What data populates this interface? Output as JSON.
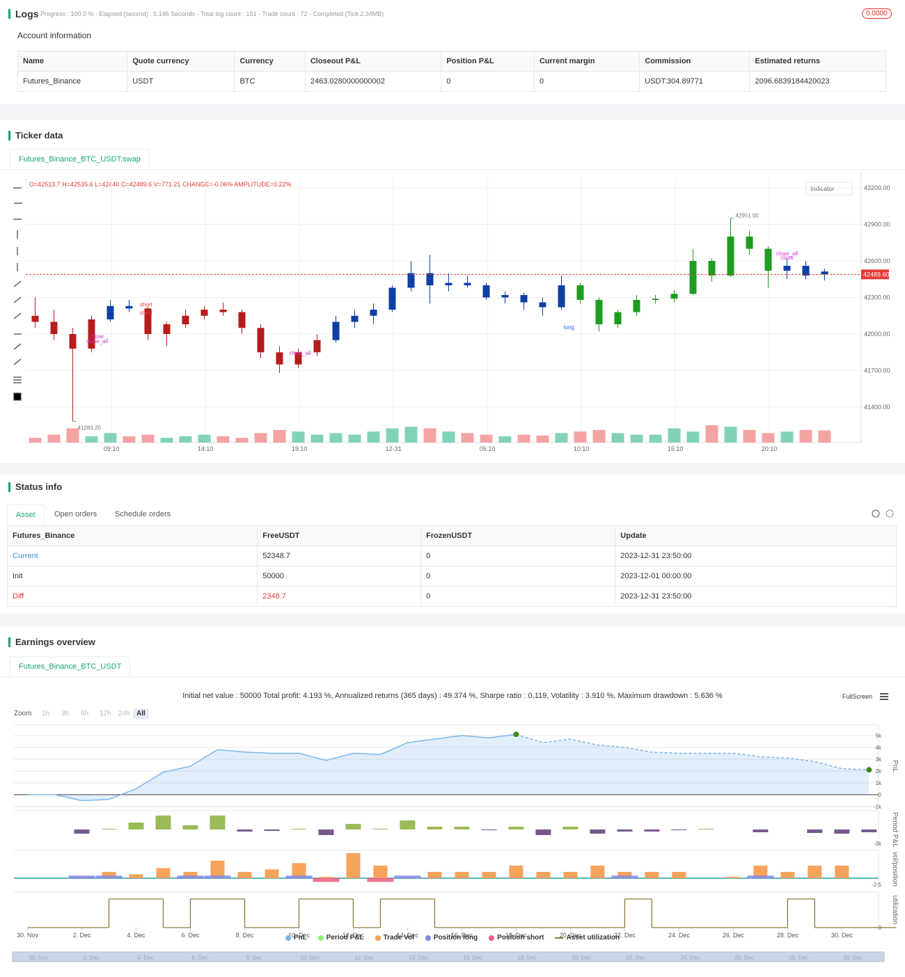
{
  "logs": {
    "title": "Logs",
    "progress": "Progress : 100.0 % - Elapsed (second) : 5.146  Seconds - Total log count : 151 - Trade count : 72 - Completed (Tick 2.34MB)",
    "badge": "0.0000",
    "account": {
      "title": "Account information",
      "columns": [
        "Name",
        "Quote currency",
        "Currency",
        "Closeout P&L",
        "Position P&L",
        "Current margin",
        "Commission",
        "Estimated returns"
      ],
      "rows": [
        [
          "Futures_Binance",
          "USDT",
          "BTC",
          "2463.0280000000002",
          "0",
          "0",
          "USDT:304.89771",
          "2096.6839184420023"
        ]
      ]
    }
  },
  "ticker": {
    "title": "Ticker data",
    "tab": "Futures_Binance_BTC_USDT:swap",
    "indicator": "Indicator",
    "chart": {
      "type": "candlestick",
      "ohlc_text": "O=42513.7 H=42535.6 L=42440 C=42489.6 V=771.21 CHANGE=-0.06% AMPLITUDE=0.22%",
      "ylim": [
        41108.6,
        43285.7
      ],
      "yticks": [
        {
          "value": 43200,
          "label": "43200.00"
        },
        {
          "value": 42900,
          "label": "42900.00"
        },
        {
          "value": 42600,
          "label": "42600.00"
        },
        {
          "value": 42300,
          "label": "42300.00"
        },
        {
          "value": 42000,
          "label": "42000.00"
        },
        {
          "value": 41700,
          "label": "41700.00"
        },
        {
          "value": 41400,
          "label": "41400.00"
        }
      ],
      "xlim": [
        -0.5,
        42.5
      ],
      "xticks": [
        {
          "value": 4.06,
          "label": "09:10"
        },
        {
          "value": 9.06,
          "label": "14:10"
        },
        {
          "value": 14.06,
          "label": "19:10"
        },
        {
          "value": 19.06,
          "label": "12-31"
        },
        {
          "value": 24.06,
          "label": "05:10"
        },
        {
          "value": 29.06,
          "label": "10:10"
        },
        {
          "value": 34.06,
          "label": "15:10"
        },
        {
          "value": 39.06,
          "label": "20:10"
        }
      ],
      "volume_colors": {
        "up": "#82d3b5",
        "down": "#f4a3a3"
      },
      "runs": [
        {
          "color": "#b71c1c",
          "candles": [
            [
              42150,
              42300,
              42050,
              42100,
              300
            ],
            [
              42100,
              42200,
              41950,
              42000,
              500
            ],
            [
              42000,
              42050,
              41283.2,
              41880,
              900
            ],
            [
              41880,
              42150,
              41850,
              42120,
              400
            ]
          ]
        },
        {
          "color": "#0d3fa6",
          "candles": [
            [
              42120,
              42280,
              42100,
              42230,
              600
            ],
            [
              42230,
              42280,
              42180,
              42210,
              400
            ]
          ]
        },
        {
          "color": "#b71c1c",
          "candles": [
            [
              42210,
              42220,
              41950,
              42000,
              500
            ],
            [
              42000,
              42100,
              41900,
              42080,
              300
            ],
            [
              42080,
              42200,
              42050,
              42150,
              400
            ],
            [
              42150,
              42230,
              42120,
              42200,
              500
            ],
            [
              42200,
              42260,
              42150,
              42180,
              400
            ],
            [
              42180,
              42200,
              42000,
              42050,
              300
            ],
            [
              42050,
              42080,
              41800,
              41850,
              600
            ],
            [
              41850,
              41900,
              41680,
              41750,
              800
            ],
            [
              41750,
              41880,
              41720,
              41850,
              700
            ],
            [
              41850,
              42000,
              41820,
              41950,
              500
            ]
          ]
        },
        {
          "color": "#0d3fa6",
          "candles": [
            [
              41950,
              42150,
              41930,
              42100,
              600
            ],
            [
              42100,
              42200,
              42050,
              42150,
              500
            ],
            [
              42150,
              42250,
              42080,
              42200,
              700
            ],
            [
              42200,
              42400,
              42180,
              42380,
              900
            ],
            [
              42380,
              42600,
              42350,
              42500,
              1000
            ],
            [
              42500,
              42650,
              42250,
              42400,
              900
            ],
            [
              42400,
              42500,
              42350,
              42420,
              700
            ],
            [
              42420,
              42480,
              42380,
              42400,
              600
            ],
            [
              42400,
              42420,
              42280,
              42300,
              500
            ],
            [
              42300,
              42350,
              42250,
              42320,
              400
            ],
            [
              42320,
              42340,
              42200,
              42260,
              500
            ],
            [
              42260,
              42300,
              42150,
              42220,
              450
            ],
            [
              42220,
              42480,
              42200,
              42400,
              600
            ]
          ]
        },
        {
          "color": "#1e9e1e",
          "candles": [
            [
              42400,
              42420,
              42250,
              42280,
              700
            ],
            [
              42280,
              42300,
              42020,
              42080,
              800
            ],
            [
              42080,
              42200,
              42050,
              42180,
              600
            ],
            [
              42180,
              42320,
              42150,
              42280,
              500
            ],
            [
              42280,
              42320,
              42250,
              42290,
              500
            ],
            [
              42290,
              42360,
              42260,
              42330,
              900
            ],
            [
              42330,
              42700,
              42320,
              42600,
              700
            ],
            [
              42600,
              42620,
              42430,
              42480,
              1100
            ],
            [
              42480,
              42951,
              42470,
              42800,
              1000
            ],
            [
              42800,
              42850,
              42650,
              42700,
              800
            ],
            [
              42700,
              42720,
              42380,
              42520,
              600
            ]
          ]
        },
        {
          "color": "#0d3fa6",
          "candles": [
            [
              42520,
              42620,
              42450,
              42560,
              700
            ],
            [
              42560,
              42600,
              42450,
              42480,
              800
            ],
            [
              42513.7,
              42535.6,
              42440,
              42489.6,
              771.21
            ]
          ]
        }
      ],
      "last_price": {
        "value": 42489.6,
        "label": "42489.60"
      },
      "high": {
        "index": 37,
        "value": 42951,
        "label": "42951.00"
      },
      "low": {
        "index": 2,
        "value": 41283.2,
        "label": "41283.20"
      },
      "signals": [
        {
          "text": "close",
          "index": 3.3,
          "price": 41965,
          "color": "#cc33cc"
        },
        {
          "text": "close_all",
          "index": 3.3,
          "price": 41925,
          "color": "#cc33cc"
        },
        {
          "text": "short",
          "index": 5.9,
          "price": 42225,
          "color": "#e53935"
        },
        {
          "text": "short",
          "index": 5.9,
          "price": 42160,
          "color": "#e53935"
        },
        {
          "text": "close_all",
          "index": 14.1,
          "price": 41830,
          "color": "#cc33cc"
        },
        {
          "text": "long",
          "index": 28.4,
          "price": 42040,
          "color": "#2962ff"
        },
        {
          "text": "close_all",
          "index": 40,
          "price": 42645,
          "color": "#cc33cc"
        },
        {
          "text": "close",
          "index": 40,
          "price": 42610,
          "color": "#cc33cc"
        }
      ]
    }
  },
  "status": {
    "title": "Status info",
    "tabs": [
      "Asset",
      "Open orders",
      "Schedule orders"
    ],
    "table": {
      "columns": [
        "Futures_Binance",
        "FreeUSDT",
        "FrozenUSDT",
        "Update"
      ],
      "rows": [
        [
          "Current",
          "52348.7",
          "0",
          "2023-12-31 23:50:00"
        ],
        [
          "Init",
          "50000",
          "0",
          "2023-12-01 00:00:00"
        ],
        [
          "Diff",
          "2348.7",
          "0",
          "2023-12-31 23:50:00"
        ]
      ]
    }
  },
  "earnings": {
    "title": "Earnings overview",
    "tab": "Futures_Binance_BTC_USDT",
    "summary": "Initial net value : 50000 Total profit: 4.193 %, Annualized returns (365 days) : 49.374 %, Sharpe ratio : 0.119, Volatility : 3.910 %, Maximum drawdown : 5.636 %",
    "zoom": {
      "label": "Zoom",
      "buttons": [
        "1h",
        "3h",
        "6h",
        "12h",
        "24h",
        "All"
      ],
      "active": "All"
    },
    "fullscreen": "FullScreen",
    "chart": {
      "type": "multi-panel",
      "xlim": [
        -0.5,
        31.35
      ],
      "xticks": [
        {
          "value": 0,
          "label": "30. Nov"
        },
        {
          "value": 2,
          "label": "2. Dec"
        },
        {
          "value": 4,
          "label": "4. Dec"
        },
        {
          "value": 6,
          "label": "6. Dec"
        },
        {
          "value": 8,
          "label": "8. Dec"
        },
        {
          "value": 10,
          "label": "10. Dec"
        },
        {
          "value": 12,
          "label": "12. Dec"
        },
        {
          "value": 14,
          "label": "14. Dec"
        },
        {
          "value": 16,
          "label": "16. Dec"
        },
        {
          "value": 18,
          "label": "18. Dec"
        },
        {
          "value": 20,
          "label": "20. Dec"
        },
        {
          "value": 22,
          "label": "22. Dec"
        },
        {
          "value": 24,
          "label": "24. Dec"
        },
        {
          "value": 26,
          "label": "26. Dec"
        },
        {
          "value": 28,
          "label": "28. Dec"
        },
        {
          "value": 30,
          "label": "30. Dec"
        }
      ],
      "panels": [
        {
          "title": "PnL",
          "ylim": [
            -1059,
            5882
          ],
          "yticks": [
            {
              "value": 5000,
              "label": "5k"
            },
            {
              "value": 4000,
              "label": "4k"
            },
            {
              "value": 3000,
              "label": "3k"
            },
            {
              "value": 2000,
              "label": "2k"
            },
            {
              "value": 1000,
              "label": "1k"
            },
            0,
            {
              "value": -1000,
              "label": "-1k"
            }
          ],
          "grid": true,
          "series": [
            {
              "name": "PnL",
              "type": "area",
              "color": "#7cb5ec",
              "dashed_after_peak": true,
              "values": [
                0,
                0,
                -500,
                -400,
                500,
                1900,
                2400,
                3800,
                3600,
                3500,
                3500,
                2900,
                3500,
                3400,
                4400,
                4700,
                5000,
                4800,
                5100,
                4400,
                4700,
                4200,
                4000,
                3600,
                3500,
                3500,
                3500,
                3200,
                3100,
                2800,
                2200,
                2100
              ]
            }
          ]
        },
        {
          "title": "Period P&L",
          "ylim": [
            -2800,
            2700
          ],
          "yticks": [
            {
              "value": -2000,
              "label": "-2k"
            }
          ],
          "series": [
            {
              "name": "Period P&L",
              "type": "column",
              "color": "#90ed7d",
              "bar_colors": {
                "up": "#9bbb59",
                "down": "#76588f"
              },
              "values": [
                0,
                0,
                -600,
                100,
                1000,
                2000,
                600,
                2000,
                -300,
                -200,
                100,
                -800,
                800,
                100,
                1300,
                400,
                400,
                -100,
                400,
                -800,
                400,
                -600,
                -300,
                -300,
                -100,
                100,
                0,
                -400,
                0,
                -500,
                -600,
                -400
              ]
            }
          ]
        },
        {
          "title": "vol/position",
          "ylim": [
            -3.9,
            11.1
          ],
          "yticks": [
            -2.5
          ],
          "series": [
            {
              "name": "Trade Vol",
              "type": "column",
              "color": "#f7a35c",
              "values": [
                0,
                0,
                0.5,
                2.5,
                1.5,
                4,
                2.5,
                7,
                2.5,
                3.5,
                6,
                0.5,
                10,
                5,
                0.5,
                2.5,
                2.5,
                2.5,
                5,
                2.5,
                2.5,
                5,
                2.5,
                2.5,
                2.5,
                0,
                0.5,
                5,
                2.5,
                5,
                5,
                0
              ]
            },
            {
              "name": "Position long",
              "type": "column",
              "color": "#8085e9",
              "values": [
                0,
                0,
                1,
                1,
                0,
                0,
                1,
                1,
                0,
                0,
                1,
                0,
                0,
                0,
                1,
                0,
                0,
                0,
                0,
                0,
                0,
                0,
                1,
                0,
                0,
                0,
                0,
                1,
                0,
                0,
                0,
                0
              ]
            },
            {
              "name": "Position short",
              "type": "column",
              "color": "#f15c80",
              "values": [
                0,
                0,
                0,
                0,
                0,
                0,
                0,
                0,
                0,
                0,
                0,
                -1.5,
                0,
                -1.5,
                0,
                0,
                0,
                0,
                0,
                0,
                0,
                0,
                0,
                0,
                0,
                0,
                0,
                0,
                0,
                0,
                0,
                0
              ]
            }
          ]
        },
        {
          "title": "utilization",
          "ylim": [
            0,
            1.24
          ],
          "yticks": [
            0
          ],
          "series": [
            {
              "name": "Asset utilization",
              "type": "step",
              "color": "#8a7a3a",
              "values": [
                0,
                0,
                0,
                1,
                1,
                0,
                1,
                1,
                0,
                0,
                1,
                1,
                0,
                1,
                1,
                0,
                0,
                0,
                0,
                0,
                0,
                0,
                1,
                0,
                0,
                0,
                0,
                0,
                1,
                0,
                0,
                0
              ]
            }
          ]
        }
      ]
    }
  }
}
